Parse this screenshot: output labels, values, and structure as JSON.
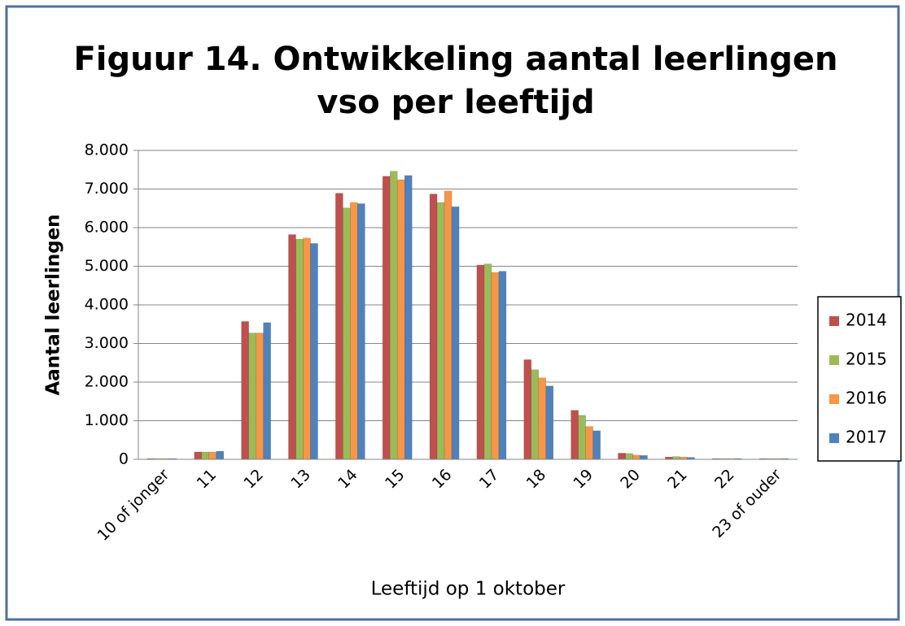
{
  "chart_data": {
    "type": "bar",
    "title": [
      "Figuur 14. Ontwikkeling aantal leerlingen",
      "vso per leeftijd"
    ],
    "x_label": "Leeftijd op 1 oktober",
    "y_label": "Aantal leerlingen",
    "categories": [
      "10 of jonger",
      "11",
      "12",
      "13",
      "14",
      "15",
      "16",
      "17",
      "18",
      "19",
      "20",
      "21",
      "22",
      "23 of ouder"
    ],
    "series": [
      {
        "name": "2014",
        "color": "#c0504d",
        "values": [
          20,
          190,
          3570,
          5820,
          6890,
          7330,
          6870,
          5030,
          2580,
          1270,
          160,
          60,
          20,
          20
        ]
      },
      {
        "name": "2015",
        "color": "#9bbb59",
        "values": [
          20,
          190,
          3270,
          5700,
          6510,
          7460,
          6650,
          5060,
          2320,
          1140,
          150,
          70,
          20,
          20
        ]
      },
      {
        "name": "2016",
        "color": "#f79646",
        "values": [
          20,
          190,
          3270,
          5730,
          6650,
          7240,
          6950,
          4840,
          2110,
          850,
          110,
          60,
          20,
          20
        ]
      },
      {
        "name": "2017",
        "color": "#4f81bd",
        "values": [
          20,
          210,
          3540,
          5590,
          6620,
          7350,
          6540,
          4870,
          1900,
          740,
          100,
          50,
          20,
          20
        ]
      }
    ],
    "ylim": [
      0,
      8000
    ],
    "yticks": [
      0,
      {
        "value": 1000,
        "label": "1.000"
      },
      {
        "value": 2000,
        "label": "2.000"
      },
      {
        "value": 3000,
        "label": "3.000"
      },
      {
        "value": 4000,
        "label": "4.000"
      },
      {
        "value": 5000,
        "label": "5.000"
      },
      {
        "value": 6000,
        "label": "6.000"
      },
      {
        "value": 7000,
        "label": "7.000"
      },
      {
        "value": 8000,
        "label": "8.000"
      }
    ],
    "grid": true,
    "legend": "right"
  }
}
